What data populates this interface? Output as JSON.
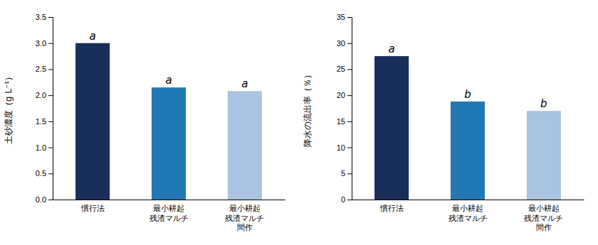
{
  "chart_data": [
    {
      "type": "bar",
      "categories": [
        "慣行法",
        "最小耕起\n残渣マルチ",
        "最小耕起\n残渣マルチ\n間作"
      ],
      "values": [
        3.0,
        2.15,
        2.08
      ],
      "colors": [
        "#1a2e5a",
        "#2278b5",
        "#a8c4e0"
      ],
      "ylabel": "土砂濃度（g L⁻¹）",
      "ylim": [
        0,
        3.5
      ],
      "yticks": [
        {
          "value": 0.0,
          "label": "0.0"
        },
        0.5,
        {
          "value": 1.0,
          "label": "1.0"
        },
        1.5,
        {
          "value": 2.0,
          "label": "2.0"
        },
        2.5,
        {
          "value": 3.0,
          "label": "3.0"
        },
        3.5
      ],
      "annotations": [
        "a",
        "a",
        "a"
      ],
      "grid": false
    },
    {
      "type": "bar",
      "categories": [
        "慣行法",
        "最小耕起\n残渣マルチ",
        "最小耕起\n残渣マルチ\n間作"
      ],
      "values": [
        27.5,
        18.8,
        17.0
      ],
      "colors": [
        "#1a2e5a",
        "#2278b5",
        "#a8c4e0"
      ],
      "ylabel": "降水の流出率（％）",
      "ylim": [
        0,
        35
      ],
      "yticks": [
        0,
        5,
        10,
        15,
        20,
        25,
        30,
        35
      ],
      "annotations": [
        "a",
        "b",
        "b"
      ],
      "grid": false
    }
  ]
}
